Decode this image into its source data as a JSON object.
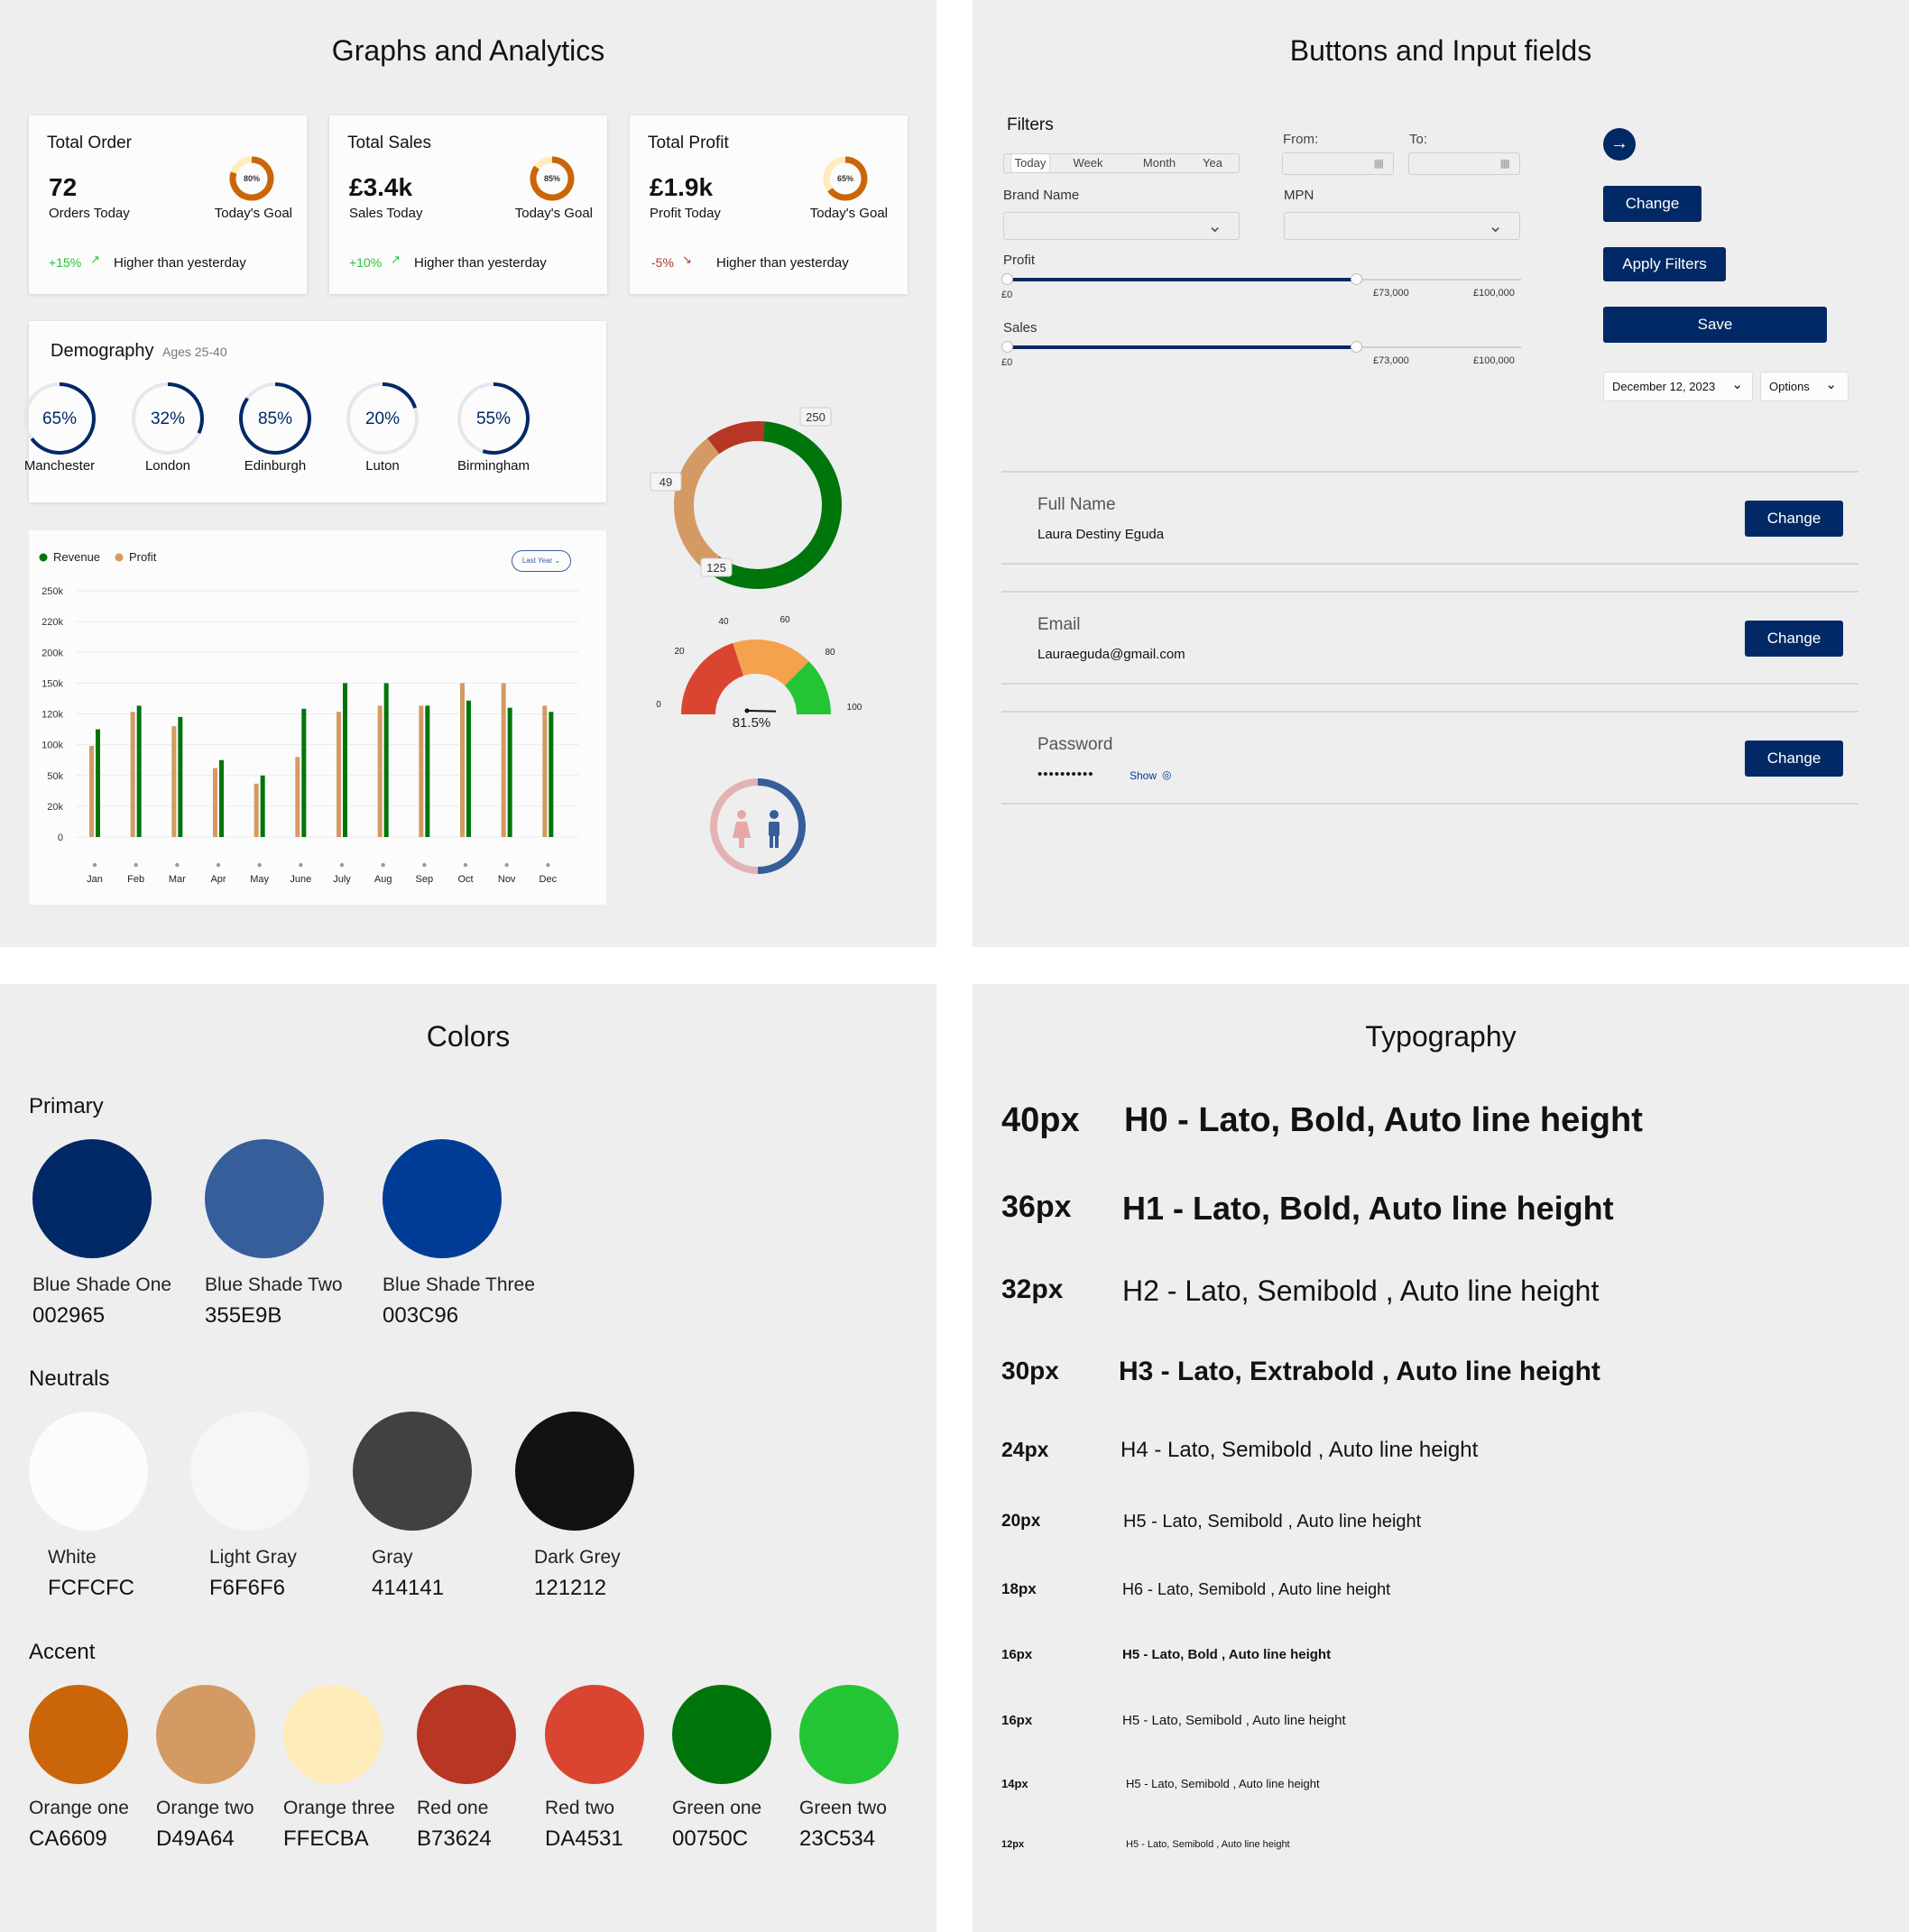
{
  "graphs": {
    "title": "Graphs and Analytics",
    "cards": [
      {
        "title": "Total Order",
        "value": "72",
        "value_label": "Orders Today",
        "goal_pct": "80%",
        "goal_level": 0.8,
        "goal_label": "Today's Goal",
        "change": "+15%",
        "change_dir": "up",
        "change_text": "Higher than yesterday"
      },
      {
        "title": "Total Sales",
        "value": "£3.4k",
        "value_label": "Sales Today",
        "goal_pct": "85%",
        "goal_level": 0.85,
        "goal_label": "Today's Goal",
        "change": "+10%",
        "change_dir": "up",
        "change_text": "Higher than yesterday"
      },
      {
        "title": "Total Profit",
        "value": "£1.9k",
        "value_label": "Profit Today",
        "goal_pct": "65%",
        "goal_level": 0.65,
        "goal_label": "Today's Goal",
        "change": "-5%",
        "change_dir": "down",
        "change_text": "Higher than yesterday"
      }
    ],
    "demography": {
      "title": "Demography",
      "subtitle": "Ages 25-40",
      "cities": [
        {
          "pct": "65%",
          "level": 0.65,
          "name": "Manchester"
        },
        {
          "pct": "32%",
          "level": 0.32,
          "name": "London"
        },
        {
          "pct": "85%",
          "level": 0.85,
          "name": "Edinburgh"
        },
        {
          "pct": "20%",
          "level": 0.2,
          "name": "Luton"
        },
        {
          "pct": "55%",
          "level": 0.55,
          "name": "Birmingham"
        }
      ]
    },
    "bar_filter": "Last Year",
    "gauge_value": "81.5%",
    "colors": {
      "revenue": "#00750C",
      "profit": "#D49A64",
      "primary": "#002965",
      "up": "#23C534",
      "down": "#B73624"
    }
  },
  "chart_data": [
    {
      "type": "bar",
      "title": "",
      "legend": [
        "Revenue",
        "Profit"
      ],
      "legend_position": "top-left",
      "categories": [
        "Jan",
        "Feb",
        "Mar",
        "Apr",
        "May",
        "June",
        "July",
        "Aug",
        "Sep",
        "Oct",
        "Nov",
        "Dec"
      ],
      "series": [
        {
          "name": "Revenue",
          "color": "#00750C",
          "values": [
            110000,
            128000,
            118000,
            75000,
            50000,
            125000,
            150000,
            150000,
            128000,
            133000,
            126000,
            122000
          ]
        },
        {
          "name": "Profit",
          "color": "#D49A64",
          "values": [
            98000,
            122000,
            112000,
            62000,
            42000,
            80000,
            122000,
            128000,
            128000,
            150000,
            150000,
            128000
          ]
        }
      ],
      "y_ticks": [
        "0",
        "20k",
        "50k",
        "100k",
        "120k",
        "150k",
        "200k",
        "220k",
        "250k"
      ],
      "grid": true
    },
    {
      "type": "pie",
      "variant": "donut",
      "slices": [
        {
          "label": "250",
          "value": 250,
          "color": "#00750C"
        },
        {
          "label": "125",
          "value": 125,
          "color": "#D49A64"
        },
        {
          "label": "49",
          "value": 49,
          "color": "#B73624"
        }
      ]
    },
    {
      "type": "gauge",
      "ticks": [
        "0",
        "20",
        "40",
        "60",
        "80",
        "100"
      ],
      "value": 81.5,
      "label": "81.5%"
    }
  ],
  "buttons": {
    "title": "Buttons and Input fields",
    "filters_label": "Filters",
    "segments": [
      "Today",
      "Week",
      "Month",
      "Yea"
    ],
    "from_label": "From:",
    "to_label": "To:",
    "brand_label": "Brand Name",
    "mpn_label": "MPN",
    "profit_label": "Profit",
    "sales_label": "Sales",
    "slider_min": "£0",
    "slider_val": "£73,000",
    "slider_max": "£100,000",
    "slider_level": 0.73,
    "change_btn": "Change",
    "apply_btn": "Apply Filters",
    "save_btn": "Save",
    "date_select": "December 12, 2023",
    "options_select": "Options",
    "rows": [
      {
        "label": "Full Name",
        "value": "Laura Destiny Eguda",
        "btn": "Change"
      },
      {
        "label": "Email",
        "value": "Lauraeguda@gmail.com",
        "btn": "Change"
      },
      {
        "label": "Password",
        "value": "••••••••••",
        "show": "Show",
        "btn": "Change"
      }
    ]
  },
  "colors_panel": {
    "title": "Colors",
    "groups": [
      {
        "name": "Primary",
        "swatches": [
          {
            "name": "Blue Shade One",
            "code": "002965",
            "hex": "#002965"
          },
          {
            "name": "Blue Shade Two",
            "code": "355E9B",
            "hex": "#355E9B"
          },
          {
            "name": "Blue Shade Three",
            "code": "003C96",
            "hex": "#003C96"
          }
        ]
      },
      {
        "name": "Neutrals",
        "swatches": [
          {
            "name": "White",
            "code": "FCFCFC",
            "hex": "#FCFCFC"
          },
          {
            "name": "Light Gray",
            "code": "F6F6F6",
            "hex": "#F6F6F6"
          },
          {
            "name": "Gray",
            "code": "414141",
            "hex": "#414141"
          },
          {
            "name": "Dark Grey",
            "code": "121212",
            "hex": "#121212"
          }
        ]
      },
      {
        "name": "Accent",
        "swatches": [
          {
            "name": "Orange one",
            "code": "CA6609",
            "hex": "#CA6609"
          },
          {
            "name": "Orange two",
            "code": "D49A64",
            "hex": "#D49A64"
          },
          {
            "name": "Orange three",
            "code": "FFECBA",
            "hex": "#FFECBA"
          },
          {
            "name": "Red one",
            "code": "B73624",
            "hex": "#B73624"
          },
          {
            "name": "Red two",
            "code": "DA4531",
            "hex": "#DA4531"
          },
          {
            "name": "Green one",
            "code": "00750C",
            "hex": "#00750C"
          },
          {
            "name": "Green two",
            "code": "23C534",
            "hex": "#23C534"
          }
        ]
      }
    ]
  },
  "typography": {
    "title": "Typography",
    "rows": [
      {
        "size": "40px",
        "text": "H0 - Lato, Bold, Auto line height"
      },
      {
        "size": "36px",
        "text": "H1 - Lato, Bold, Auto line height"
      },
      {
        "size": "32px",
        "text": "H2 - Lato, Semibold , Auto line height"
      },
      {
        "size": "30px",
        "text": "H3 - Lato, Extrabold , Auto line height"
      },
      {
        "size": "24px",
        "text": "H4 - Lato, Semibold , Auto line height"
      },
      {
        "size": "20px",
        "text": "H5 - Lato, Semibold , Auto line height"
      },
      {
        "size": "18px",
        "text": "H6 - Lato, Semibold , Auto line height"
      },
      {
        "size": "16px",
        "text": "H5 - Lato, Bold , Auto line height"
      },
      {
        "size": "16px",
        "text": "H5 - Lato, Semibold , Auto line height"
      },
      {
        "size": "14px",
        "text": "H5 - Lato, Semibold , Auto line height"
      },
      {
        "size": "12px",
        "text": "H5 - Lato, Semibold , Auto line height"
      }
    ]
  }
}
